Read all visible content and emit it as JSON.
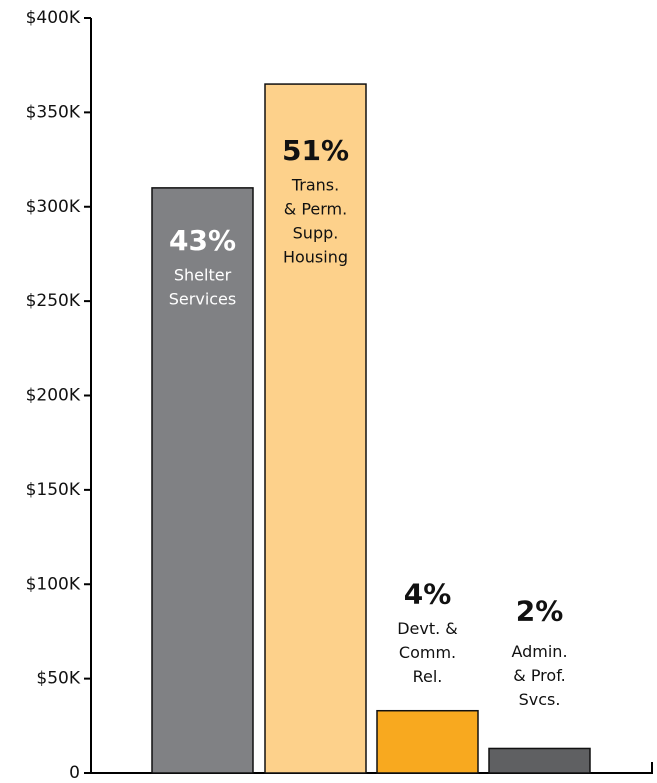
{
  "chart_data": {
    "type": "bar",
    "categories": [
      [
        "Shelter",
        "Services"
      ],
      [
        "Trans.",
        "& Perm.",
        "Supp.",
        "Housing"
      ],
      [
        "Devt. &",
        "Comm.",
        "Rel."
      ],
      [
        "Admin.",
        "& Prof.",
        "Svcs."
      ]
    ],
    "values": [
      310000,
      365000,
      33000,
      13000
    ],
    "percent_labels": [
      "43%",
      "51%",
      "4%",
      "2%"
    ],
    "colors": [
      "#808184",
      "#fdd18b",
      "#f8a91f",
      "#5f6062"
    ],
    "ylim": [
      0,
      400000
    ],
    "yticks": [
      {
        "value": 0,
        "label": "0"
      },
      {
        "value": 50000,
        "label": "$50K"
      },
      {
        "value": 100000,
        "label": "$100K"
      },
      {
        "value": 150000,
        "label": "$150K"
      },
      {
        "value": 200000,
        "label": "$200K"
      },
      {
        "value": 250000,
        "label": "$250K"
      },
      {
        "value": 300000,
        "label": "$300K"
      },
      {
        "value": 350000,
        "label": "$350K"
      },
      {
        "value": 400000,
        "label": "$400K"
      }
    ],
    "grid": false
  }
}
